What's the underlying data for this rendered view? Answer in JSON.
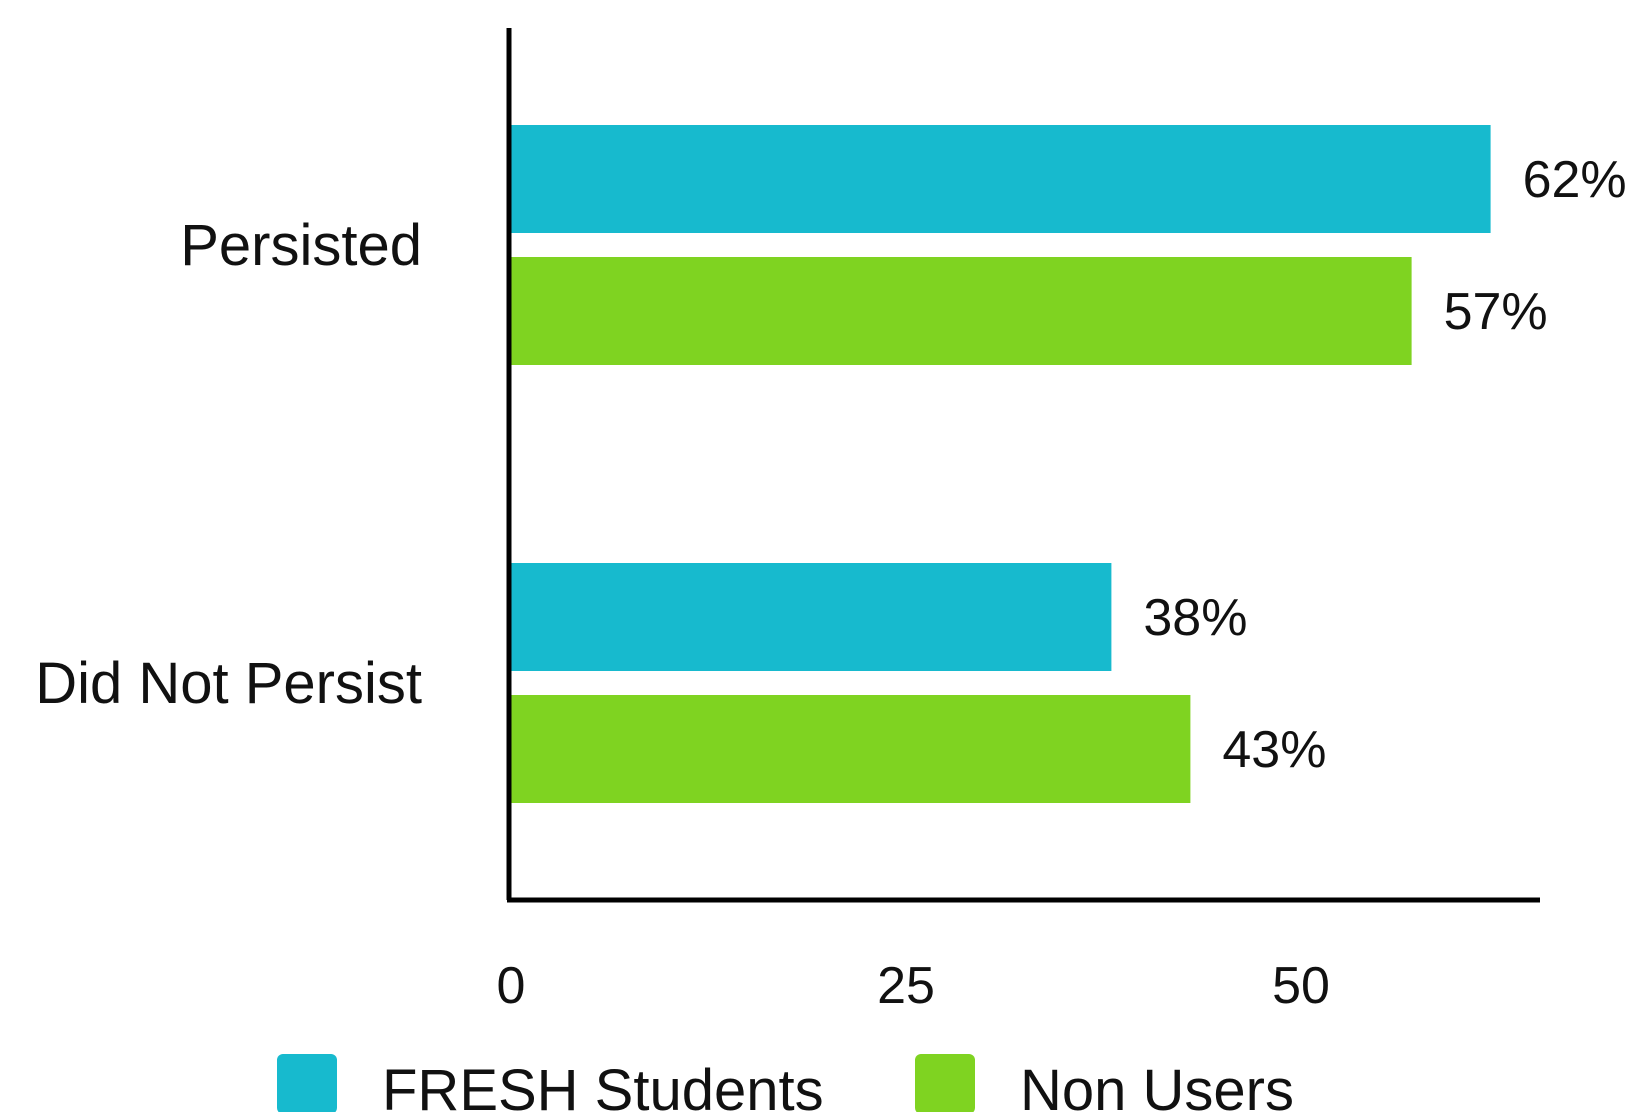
{
  "chart_data": {
    "type": "bar",
    "orientation": "horizontal",
    "categories": [
      "Persisted",
      "Did Not Persist"
    ],
    "series": [
      {
        "name": "FRESH Students",
        "values": [
          62,
          38
        ],
        "labels": [
          "62%",
          "38%"
        ],
        "color": "#17bace"
      },
      {
        "name": "Non Users",
        "values": [
          57,
          43
        ],
        "labels": [
          "57%",
          "43%"
        ],
        "color": "#7fd321"
      }
    ],
    "x_ticks": [
      {
        "value": 0,
        "label": "0"
      },
      {
        "value": 25,
        "label": "25"
      },
      {
        "value": 50,
        "label": "50"
      }
    ],
    "xlim": [
      0,
      65
    ],
    "grid": false,
    "legend_position": "bottom"
  }
}
